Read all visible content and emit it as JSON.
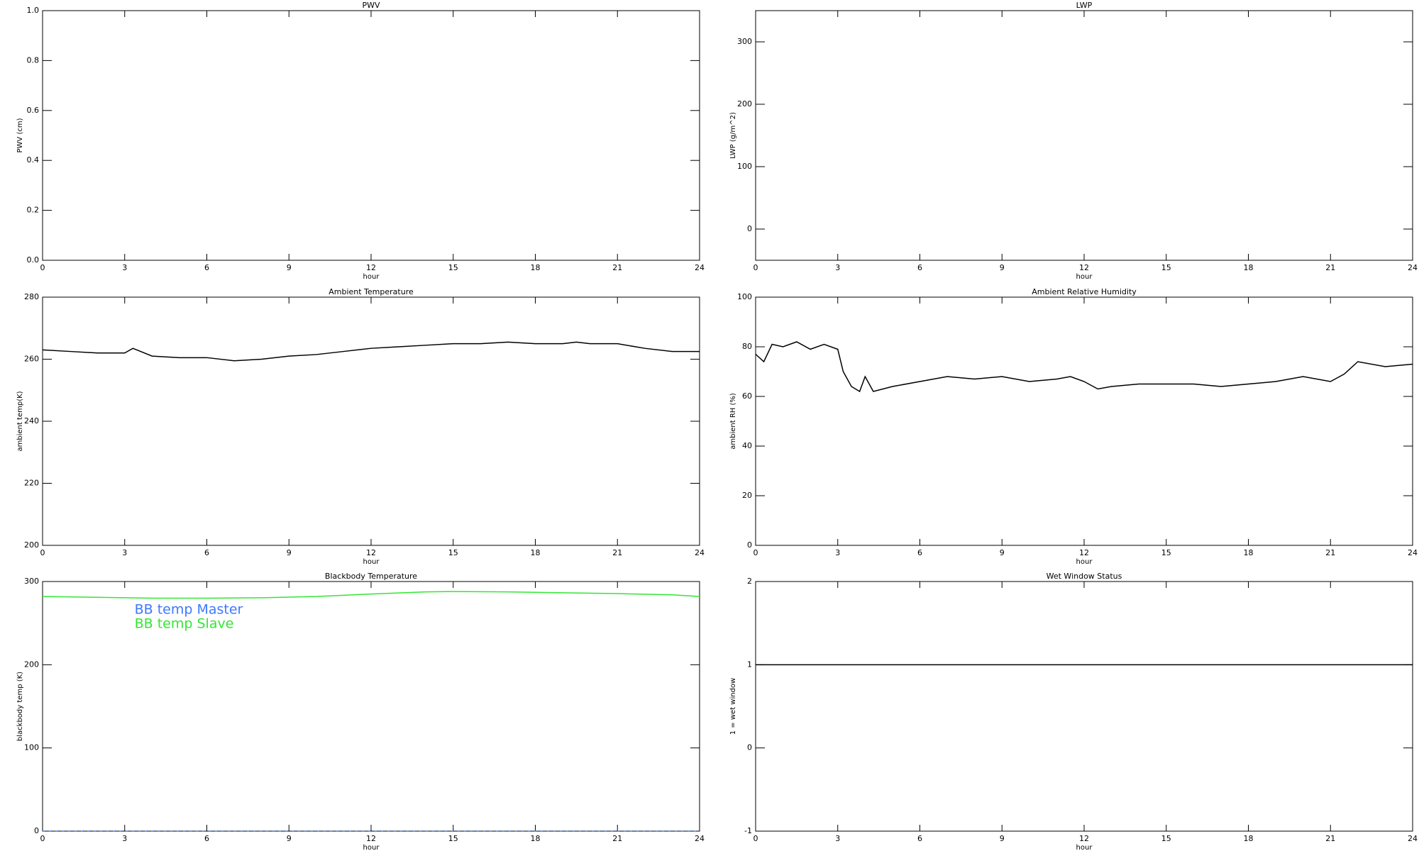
{
  "chart_data": [
    {
      "type": "line",
      "title": "PWV",
      "ylabel": "PWV (cm)",
      "xlabel": "hour",
      "xlim": [
        0,
        24
      ],
      "xticks": [
        0,
        3,
        6,
        9,
        12,
        15,
        18,
        21,
        24
      ],
      "ylim": [
        0,
        1
      ],
      "yticks": [
        {
          "value": 0,
          "label": "0.0"
        },
        {
          "value": 0.2,
          "label": "0.2"
        },
        {
          "value": 0.4,
          "label": "0.4"
        },
        {
          "value": 0.6,
          "label": "0.6"
        },
        {
          "value": 0.8,
          "label": "0.8"
        },
        {
          "value": 1,
          "label": "1.0"
        }
      ],
      "x": [],
      "series": []
    },
    {
      "type": "line",
      "title": "LWP",
      "ylabel": "LWP (g/m^2)",
      "xlabel": "hour",
      "xlim": [
        0,
        24
      ],
      "xticks": [
        0,
        3,
        6,
        9,
        12,
        15,
        18,
        21,
        24
      ],
      "ylim": [
        -50,
        350
      ],
      "yticks": [
        0,
        100,
        200,
        300
      ],
      "x": [],
      "series": []
    },
    {
      "type": "line",
      "title": "Ambient Temperature",
      "ylabel": "ambient temp(K)",
      "xlabel": "hour",
      "xlim": [
        0,
        24
      ],
      "xticks": [
        0,
        3,
        6,
        9,
        12,
        15,
        18,
        21,
        24
      ],
      "ylim": [
        200,
        280
      ],
      "yticks": [
        200,
        220,
        240,
        260,
        280
      ],
      "x": [
        0,
        1,
        2,
        3,
        3.3,
        4,
        5,
        6,
        7,
        8,
        9,
        10,
        11,
        12,
        13,
        14,
        15,
        16,
        17,
        18,
        19,
        19.5,
        20,
        21,
        22,
        23,
        24
      ],
      "series": [
        {
          "name": "ambient temp",
          "color": "#000000",
          "values": [
            263,
            262.5,
            262,
            262,
            263.5,
            261,
            260.5,
            260.5,
            259.5,
            260,
            261,
            261.5,
            262.5,
            263.5,
            264,
            264.5,
            265,
            265,
            265.5,
            265,
            265,
            265.5,
            265,
            265,
            263.5,
            262.5,
            262.5
          ]
        }
      ]
    },
    {
      "type": "line",
      "title": "Ambient Relative Humidity",
      "ylabel": "ambient RH (%)",
      "xlabel": "hour",
      "xlim": [
        0,
        24
      ],
      "xticks": [
        0,
        3,
        6,
        9,
        12,
        15,
        18,
        21,
        24
      ],
      "ylim": [
        0,
        100
      ],
      "yticks": [
        0,
        20,
        40,
        60,
        80,
        100
      ],
      "x": [
        0,
        0.3,
        0.6,
        1,
        1.5,
        2,
        2.5,
        3,
        3.2,
        3.5,
        3.8,
        4,
        4.3,
        5,
        6,
        7,
        8,
        9,
        10,
        11,
        11.5,
        12,
        12.5,
        13,
        14,
        15,
        16,
        17,
        18,
        19,
        20,
        21,
        21.5,
        22,
        23,
        24
      ],
      "series": [
        {
          "name": "ambient RH",
          "color": "#000000",
          "values": [
            77,
            74,
            81,
            80,
            82,
            79,
            81,
            79,
            70,
            64,
            62,
            68,
            62,
            64,
            66,
            68,
            67,
            68,
            66,
            67,
            68,
            66,
            63,
            64,
            65,
            65,
            65,
            64,
            65,
            66,
            68,
            66,
            69,
            74,
            72,
            73
          ]
        }
      ]
    },
    {
      "type": "line",
      "title": "Blackbody Temperature",
      "ylabel": "blackbody temp (K)",
      "xlabel": "hour",
      "legend": true,
      "xlim": [
        0,
        24
      ],
      "xticks": [
        0,
        3,
        6,
        9,
        12,
        15,
        18,
        21,
        24
      ],
      "ylim": [
        0,
        300
      ],
      "yticks": [
        0,
        100,
        200,
        300
      ],
      "x": [
        0,
        2,
        4,
        6,
        8,
        10,
        12,
        14,
        15,
        17,
        19,
        21,
        23,
        24
      ],
      "series": [
        {
          "name": "BB temp Master",
          "color": "#3c78ff",
          "values": [
            0,
            0,
            0,
            0,
            0,
            0,
            0,
            0,
            0,
            0,
            0,
            0,
            0,
            0
          ]
        },
        {
          "name": "BB temp Slave",
          "color": "#33e633",
          "values": [
            282,
            281,
            280,
            280,
            280.5,
            282,
            285,
            287.5,
            288,
            287.5,
            286.5,
            285.5,
            284,
            282
          ]
        }
      ]
    },
    {
      "type": "line",
      "title": "Wet Window Status",
      "ylabel": "1 = wet window",
      "xlabel": "hour",
      "xlim": [
        0,
        24
      ],
      "xticks": [
        0,
        3,
        6,
        9,
        12,
        15,
        18,
        21,
        24
      ],
      "ylim": [
        -1,
        2
      ],
      "yticks": [
        -1,
        0,
        1,
        2
      ],
      "x": [
        0,
        24
      ],
      "series": [
        {
          "name": "wet window",
          "color": "#000000",
          "values": [
            1,
            1
          ]
        }
      ]
    }
  ]
}
